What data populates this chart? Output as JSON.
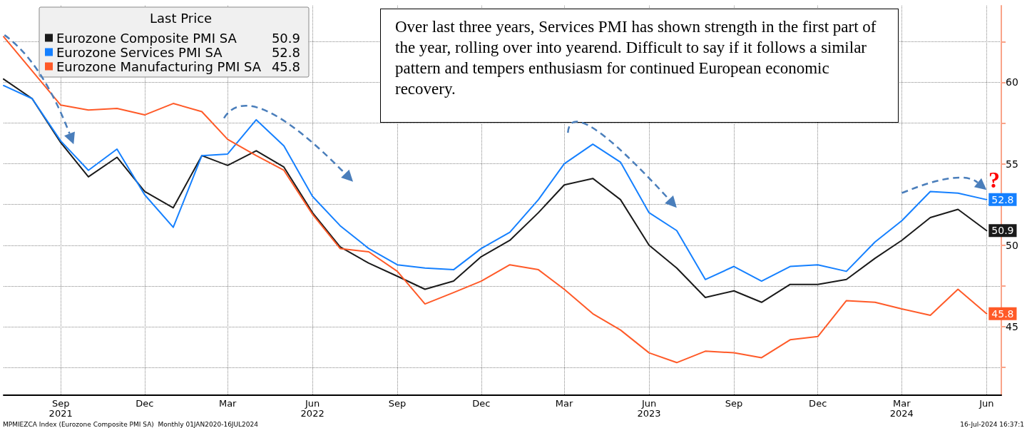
{
  "chart_data": {
    "type": "line",
    "legend_title": "Last Price",
    "legend": "top left",
    "grid": true,
    "marker": "none",
    "line_style": "solid",
    "x": [
      "2021-07",
      "2021-08",
      "2021-09",
      "2021-10",
      "2021-11",
      "2021-12",
      "2022-01",
      "2022-02",
      "2022-03",
      "2022-04",
      "2022-05",
      "2022-06",
      "2022-07",
      "2022-08",
      "2022-09",
      "2022-10",
      "2022-11",
      "2022-12",
      "2023-01",
      "2023-02",
      "2023-03",
      "2023-04",
      "2023-05",
      "2023-06",
      "2023-07",
      "2023-08",
      "2023-09",
      "2023-10",
      "2023-11",
      "2023-12",
      "2024-01",
      "2024-02",
      "2024-03",
      "2024-04",
      "2024-05",
      "2024-06"
    ],
    "xlim": [
      "2021-07",
      "2024-06-17"
    ],
    "xticks": [
      {
        "value": "2021-09",
        "label": "Sep\n2021"
      },
      {
        "value": "2021-12",
        "label": "Dec"
      },
      {
        "value": "2022-03",
        "label": "Mar"
      },
      {
        "value": "2022-06",
        "label": "Jun\n2022"
      },
      {
        "value": "2022-09",
        "label": "Sep"
      },
      {
        "value": "2022-12",
        "label": "Dec"
      },
      {
        "value": "2023-03",
        "label": "Mar"
      },
      {
        "value": "2023-06",
        "label": "Jun\n2023"
      },
      {
        "value": "2023-09",
        "label": "Sep"
      },
      {
        "value": "2023-12",
        "label": "Dec"
      },
      {
        "value": "2024-03",
        "label": "Mar\n2024"
      },
      {
        "value": "2024-06",
        "label": "Jun"
      }
    ],
    "ylim": [
      40.8,
      64.7
    ],
    "yticks": [
      {
        "value": 42.5,
        "label": null
      },
      45,
      {
        "value": 47.5,
        "label": null
      },
      50,
      {
        "value": 52.5,
        "label": null
      },
      55,
      {
        "value": 57.5,
        "label": null
      },
      60,
      {
        "value": 62.5,
        "label": null
      }
    ],
    "series": [
      {
        "name": "Eurozone Composite PMI SA",
        "color": "#1a1a1a",
        "values": [
          60.2,
          59.0,
          56.3,
          54.2,
          55.4,
          53.3,
          52.3,
          55.5,
          54.9,
          55.8,
          54.8,
          52.0,
          49.9,
          48.9,
          48.1,
          47.3,
          47.8,
          49.3,
          50.3,
          52.0,
          53.7,
          54.1,
          52.8,
          50.0,
          48.6,
          46.8,
          47.2,
          46.5,
          47.6,
          47.6,
          47.9,
          49.2,
          50.3,
          51.7,
          52.2,
          50.9
        ],
        "value_labels": [
          null,
          null,
          null,
          null,
          null,
          null,
          null,
          null,
          null,
          null,
          null,
          null,
          null,
          null,
          null,
          null,
          null,
          null,
          null,
          null,
          null,
          null,
          null,
          null,
          null,
          null,
          null,
          null,
          null,
          null,
          null,
          null,
          null,
          null,
          null,
          "50.9"
        ]
      },
      {
        "name": "Eurozone Services PMI SA",
        "color": "#1580ff",
        "values": [
          59.8,
          59.0,
          56.4,
          54.6,
          55.9,
          53.1,
          51.1,
          55.5,
          55.6,
          57.7,
          56.1,
          53.0,
          51.2,
          49.8,
          48.8,
          48.6,
          48.5,
          49.8,
          50.8,
          52.8,
          55.0,
          56.2,
          55.1,
          52.0,
          50.9,
          47.9,
          48.7,
          47.8,
          48.7,
          48.8,
          48.4,
          50.2,
          51.5,
          53.3,
          53.2,
          52.8
        ],
        "value_labels": [
          null,
          null,
          null,
          null,
          null,
          null,
          null,
          null,
          null,
          null,
          null,
          null,
          null,
          null,
          null,
          null,
          null,
          null,
          null,
          null,
          null,
          null,
          null,
          null,
          null,
          null,
          null,
          null,
          null,
          null,
          null,
          null,
          null,
          null,
          null,
          "52.8"
        ]
      },
      {
        "name": "Eurozone Manufacturing PMI SA",
        "color": "#ff5a28",
        "values": [
          62.8,
          60.7,
          58.6,
          58.3,
          58.4,
          58.0,
          58.7,
          58.2,
          56.5,
          55.5,
          54.6,
          51.9,
          49.8,
          49.6,
          48.4,
          46.4,
          47.1,
          47.8,
          48.8,
          48.5,
          47.3,
          45.8,
          44.8,
          43.4,
          42.8,
          43.5,
          43.4,
          43.1,
          44.2,
          44.4,
          46.6,
          46.5,
          46.1,
          45.7,
          47.3,
          45.8
        ],
        "value_labels": [
          null,
          null,
          null,
          null,
          null,
          null,
          null,
          null,
          null,
          null,
          null,
          null,
          null,
          null,
          null,
          null,
          null,
          null,
          null,
          null,
          null,
          null,
          null,
          null,
          null,
          null,
          null,
          null,
          null,
          null,
          null,
          null,
          null,
          null,
          null,
          "45.8"
        ]
      }
    ],
    "annotations": [
      "Over last three years, Services PMI has shown strength in the first part of the year, rolling over into yearend.  Difficult to say if it follows a similar pattern and tempers enthusiasm for continued European economic recovery.",
      "MPMIEZCA Index (Eurozone Composite PMI SA)  Monthly 01JAN2020-16JUL2024",
      "16-Jul-2024 16:37:1",
      "?"
    ]
  }
}
